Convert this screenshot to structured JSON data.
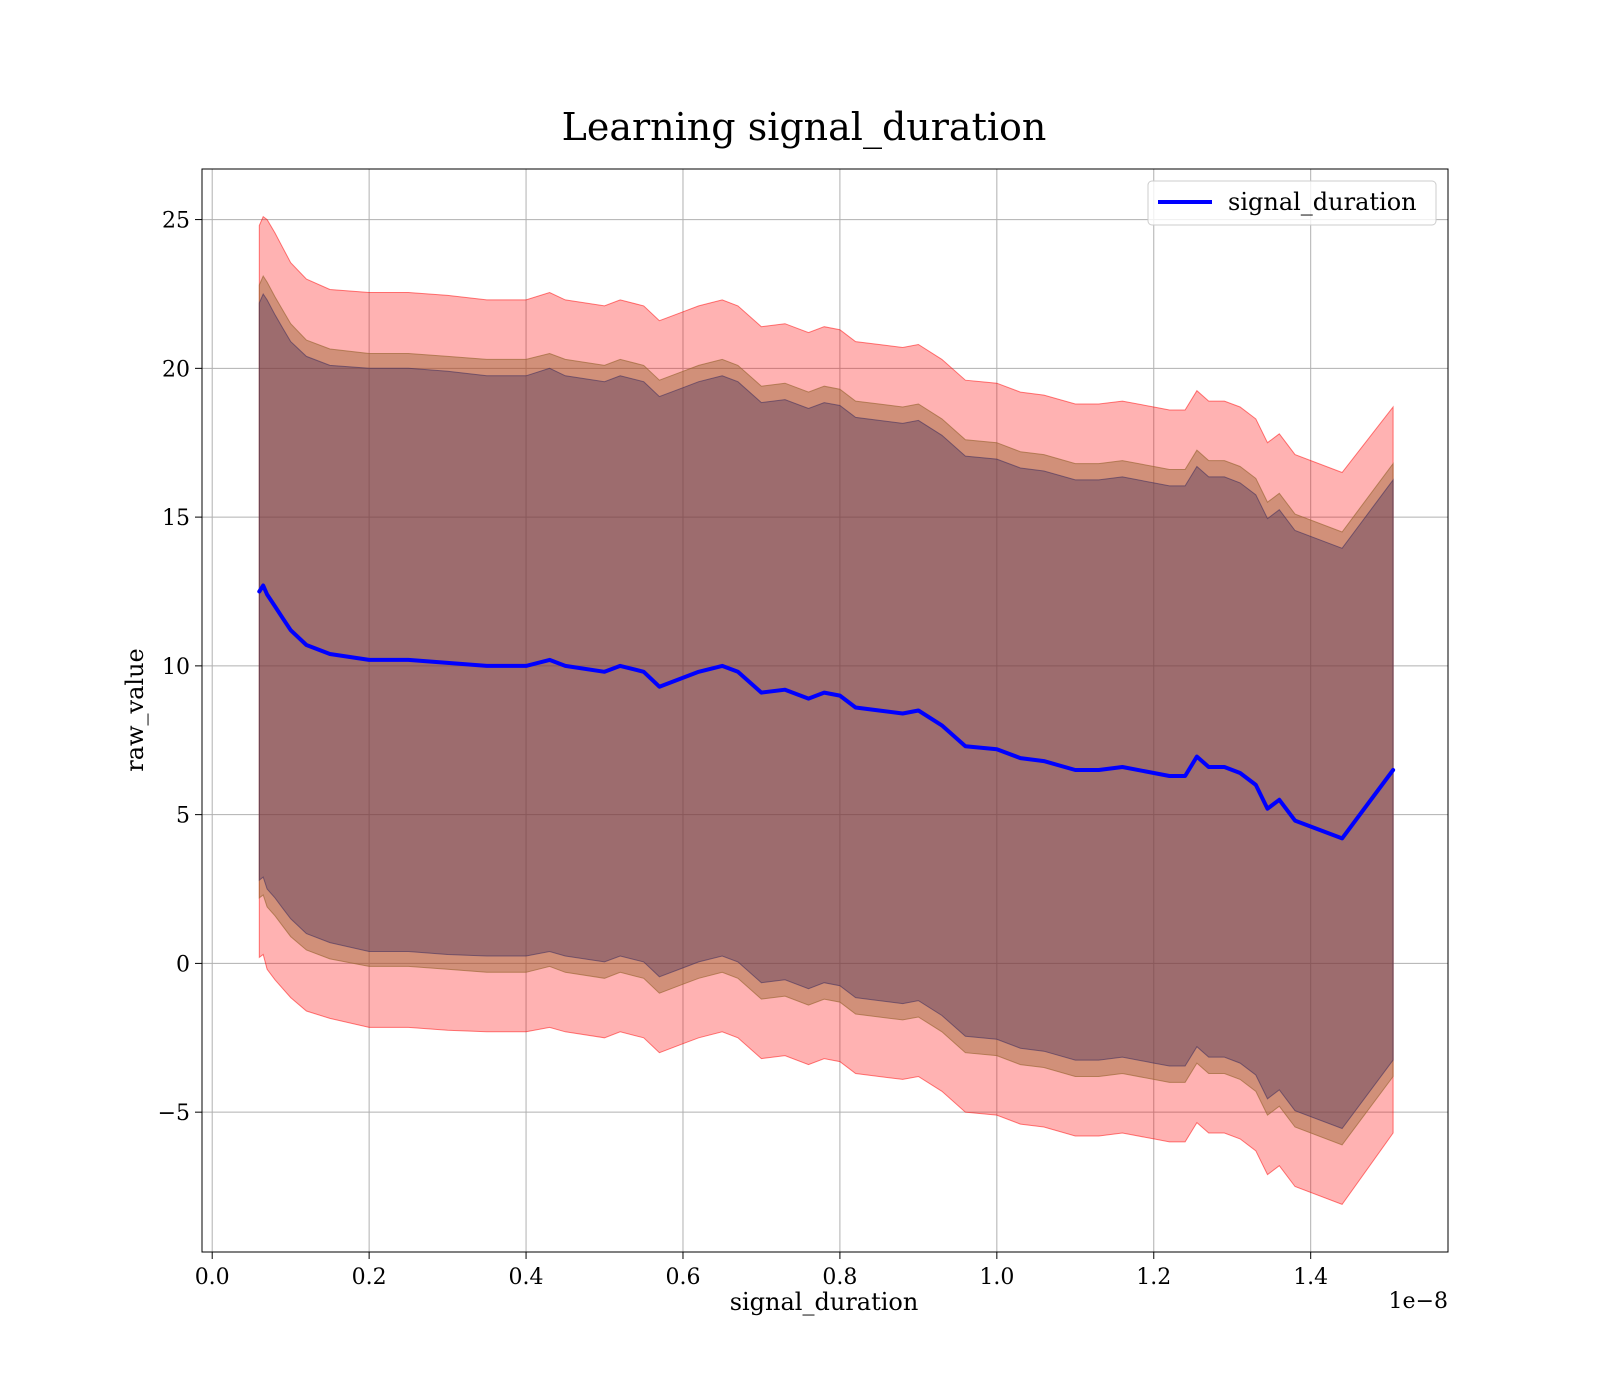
{
  "chart_data": {
    "type": "line",
    "title": "Learning signal_duration",
    "xlabel": "signal_duration",
    "ylabel": "raw_value",
    "x_offset_label": "1e−8",
    "xlim": [
      -0.013,
      1.575
    ],
    "ylim": [
      -9.7,
      26.7
    ],
    "xticks": [
      0.0,
      0.2,
      0.4,
      0.6,
      0.8,
      1.0,
      1.2,
      1.4
    ],
    "xtick_labels": [
      "0.0",
      "0.2",
      "0.4",
      "0.6",
      "0.8",
      "1.0",
      "1.2",
      "1.4"
    ],
    "yticks": [
      -5,
      0,
      5,
      10,
      15,
      20,
      25
    ],
    "ytick_labels": [
      "−5",
      "0",
      "5",
      "10",
      "15",
      "20",
      "25"
    ],
    "grid": true,
    "legend": {
      "position": "top-right",
      "entries": [
        "signal_duration"
      ]
    },
    "series": [
      {
        "name": "signal_duration",
        "color": "#0000ff",
        "x": [
          0.06,
          0.065,
          0.07,
          0.08,
          0.09,
          0.1,
          0.12,
          0.15,
          0.2,
          0.25,
          0.3,
          0.35,
          0.4,
          0.43,
          0.45,
          0.5,
          0.52,
          0.55,
          0.57,
          0.6,
          0.62,
          0.65,
          0.67,
          0.7,
          0.73,
          0.76,
          0.78,
          0.8,
          0.82,
          0.85,
          0.88,
          0.9,
          0.93,
          0.96,
          1.0,
          1.03,
          1.06,
          1.1,
          1.13,
          1.16,
          1.2,
          1.22,
          1.24,
          1.255,
          1.27,
          1.29,
          1.31,
          1.33,
          1.345,
          1.36,
          1.38,
          1.44,
          1.505
        ],
        "y": [
          12.5,
          12.7,
          12.4,
          12.0,
          11.6,
          11.2,
          10.7,
          10.4,
          10.2,
          10.2,
          10.1,
          10.0,
          10.0,
          10.2,
          10.0,
          9.8,
          10.0,
          9.8,
          9.3,
          9.6,
          9.8,
          10.0,
          9.8,
          9.1,
          9.2,
          8.9,
          9.1,
          9.0,
          8.6,
          8.5,
          8.4,
          8.5,
          8.0,
          7.3,
          7.2,
          6.9,
          6.8,
          6.5,
          6.5,
          6.6,
          6.4,
          6.3,
          6.3,
          6.95,
          6.6,
          6.6,
          6.4,
          6.0,
          5.2,
          5.5,
          4.8,
          4.2,
          6.5
        ]
      }
    ],
    "bands": [
      {
        "name": "outer",
        "color": "#ff0000",
        "alpha": 0.3,
        "lower_offset": [
          -12.3,
          -12.4,
          -12.6,
          -12.55,
          -12.45,
          -12.35,
          -12.3,
          -12.25,
          -12.35,
          -12.35,
          -12.35,
          -12.3,
          -12.3,
          -12.35,
          -12.3,
          -12.3,
          -12.3,
          -12.3,
          -12.3,
          -12.3,
          -12.3,
          -12.3,
          -12.3,
          -12.3,
          -12.3,
          -12.3,
          -12.3,
          -12.3,
          -12.3,
          -12.3,
          -12.3,
          -12.3,
          -12.3,
          -12.3,
          -12.3,
          -12.3,
          -12.3,
          -12.3,
          -12.3,
          -12.3,
          -12.3,
          -12.3,
          -12.3,
          -12.3,
          -12.3,
          -12.3,
          -12.3,
          -12.3,
          -12.3,
          -12.3,
          -12.3,
          -12.3,
          -12.2
        ],
        "upper_offset": [
          12.3,
          12.4,
          12.6,
          12.55,
          12.45,
          12.35,
          12.3,
          12.25,
          12.35,
          12.35,
          12.35,
          12.3,
          12.3,
          12.35,
          12.3,
          12.3,
          12.3,
          12.3,
          12.3,
          12.3,
          12.3,
          12.3,
          12.3,
          12.3,
          12.3,
          12.3,
          12.3,
          12.3,
          12.3,
          12.3,
          12.3,
          12.3,
          12.3,
          12.3,
          12.3,
          12.3,
          12.3,
          12.3,
          12.3,
          12.3,
          12.3,
          12.3,
          12.3,
          12.3,
          12.3,
          12.3,
          12.3,
          12.3,
          12.3,
          12.3,
          12.3,
          12.3,
          12.2
        ]
      },
      {
        "name": "middle",
        "color": "#996633",
        "alpha": 0.45,
        "lower_offset": [
          -10.3,
          -10.4,
          -10.5,
          -10.4,
          -10.35,
          -10.3,
          -10.25,
          -10.25,
          -10.3,
          -10.3,
          -10.3,
          -10.3,
          -10.3,
          -10.3,
          -10.3,
          -10.3,
          -10.3,
          -10.3,
          -10.3,
          -10.3,
          -10.3,
          -10.3,
          -10.3,
          -10.3,
          -10.3,
          -10.3,
          -10.3,
          -10.3,
          -10.3,
          -10.3,
          -10.3,
          -10.3,
          -10.3,
          -10.3,
          -10.3,
          -10.3,
          -10.3,
          -10.3,
          -10.3,
          -10.3,
          -10.3,
          -10.3,
          -10.3,
          -10.3,
          -10.3,
          -10.3,
          -10.3,
          -10.3,
          -10.3,
          -10.3,
          -10.3,
          -10.3,
          -10.3
        ],
        "upper_offset": [
          10.3,
          10.4,
          10.5,
          10.4,
          10.35,
          10.3,
          10.25,
          10.25,
          10.3,
          10.3,
          10.3,
          10.3,
          10.3,
          10.3,
          10.3,
          10.3,
          10.3,
          10.3,
          10.3,
          10.3,
          10.3,
          10.3,
          10.3,
          10.3,
          10.3,
          10.3,
          10.3,
          10.3,
          10.3,
          10.3,
          10.3,
          10.3,
          10.3,
          10.3,
          10.3,
          10.3,
          10.3,
          10.3,
          10.3,
          10.3,
          10.3,
          10.3,
          10.3,
          10.3,
          10.3,
          10.3,
          10.3,
          10.3,
          10.3,
          10.3,
          10.3,
          10.3,
          10.3
        ]
      },
      {
        "name": "inner",
        "color": "#3d2b5c",
        "alpha": 0.35,
        "lower_offset": [
          -9.7,
          -9.8,
          -9.9,
          -9.8,
          -9.75,
          -9.7,
          -9.7,
          -9.7,
          -9.8,
          -9.8,
          -9.8,
          -9.75,
          -9.75,
          -9.8,
          -9.75,
          -9.75,
          -9.75,
          -9.75,
          -9.75,
          -9.75,
          -9.75,
          -9.75,
          -9.75,
          -9.75,
          -9.75,
          -9.75,
          -9.75,
          -9.75,
          -9.75,
          -9.75,
          -9.75,
          -9.75,
          -9.75,
          -9.75,
          -9.75,
          -9.75,
          -9.75,
          -9.75,
          -9.75,
          -9.75,
          -9.75,
          -9.75,
          -9.75,
          -9.75,
          -9.75,
          -9.75,
          -9.75,
          -9.75,
          -9.75,
          -9.75,
          -9.75,
          -9.75,
          -9.75
        ],
        "upper_offset": [
          9.7,
          9.8,
          9.9,
          9.8,
          9.75,
          9.7,
          9.7,
          9.7,
          9.8,
          9.8,
          9.8,
          9.75,
          9.75,
          9.8,
          9.75,
          9.75,
          9.75,
          9.75,
          9.75,
          9.75,
          9.75,
          9.75,
          9.75,
          9.75,
          9.75,
          9.75,
          9.75,
          9.75,
          9.75,
          9.75,
          9.75,
          9.75,
          9.75,
          9.75,
          9.75,
          9.75,
          9.75,
          9.75,
          9.75,
          9.75,
          9.75,
          9.75,
          9.75,
          9.75,
          9.75,
          9.75,
          9.75,
          9.75,
          9.75,
          9.75,
          9.75,
          9.75,
          9.75
        ]
      }
    ]
  }
}
